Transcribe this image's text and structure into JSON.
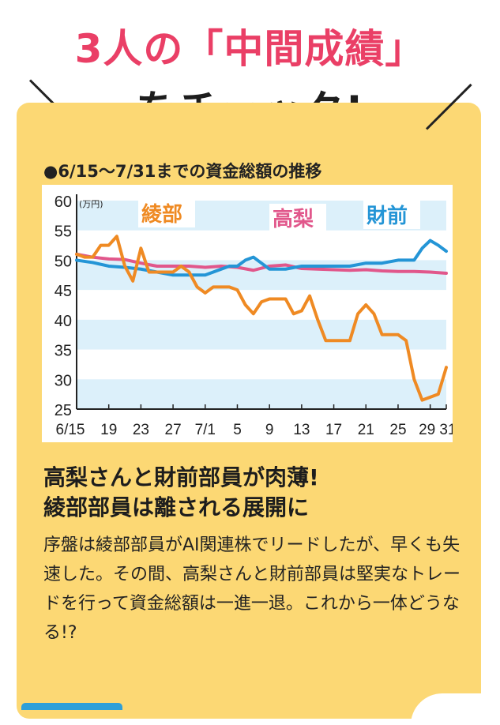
{
  "headline": {
    "line1": "3人の「中間成績」",
    "line2": "をチェック!"
  },
  "colors": {
    "accent_pink": "#ea3f66",
    "panel_yellow": "#fcd874",
    "ayabe": "#ef8a23",
    "takanashi": "#e1578b",
    "zaizen": "#2495d6",
    "band": "#dcf0fa"
  },
  "chart_data": {
    "type": "line",
    "title": "●6/15〜7/31までの資金総額の推移",
    "unit_label": "(万円)",
    "ylim": [
      25,
      60
    ],
    "y_ticks": [
      60,
      55,
      50,
      45,
      40,
      35,
      30,
      25
    ],
    "x_ticks": [
      "6/15",
      "19",
      "23",
      "27",
      "7/1",
      "5",
      "9",
      "13",
      "17",
      "21",
      "25",
      "29",
      "31"
    ],
    "x_tick_days": [
      0,
      4,
      8,
      12,
      16,
      20,
      24,
      28,
      32,
      36,
      40,
      44,
      46
    ],
    "series": [
      {
        "name": "綾部",
        "color": "#ef8a23",
        "x": [
          0,
          1,
          2,
          3,
          4,
          5,
          6,
          7,
          8,
          9,
          10,
          11,
          12,
          13,
          14,
          15,
          16,
          17,
          18,
          19,
          20,
          21,
          22,
          23,
          24,
          25,
          26,
          27,
          28,
          29,
          30,
          31,
          32,
          33,
          34,
          35,
          36,
          37,
          38,
          39,
          40,
          41,
          42,
          43,
          44,
          45,
          46
        ],
        "y": [
          51,
          50.5,
          50.5,
          52.5,
          52.5,
          54,
          49,
          46.5,
          52,
          48,
          48,
          48,
          48,
          49,
          48,
          45.5,
          44.5,
          45.5,
          45.5,
          45.5,
          45,
          42.5,
          41,
          43,
          43.5,
          43.5,
          43.5,
          41,
          41.5,
          44,
          40,
          36.5,
          36.5,
          36.5,
          36.5,
          41,
          42.5,
          41,
          37.5,
          37.5,
          37.5,
          36.5,
          30,
          26.5,
          27,
          27.5,
          32
        ]
      },
      {
        "name": "高梨",
        "color": "#e1578b",
        "x": [
          0,
          2,
          4,
          6,
          8,
          10,
          12,
          14,
          16,
          18,
          20,
          22,
          24,
          26,
          28,
          30,
          32,
          34,
          36,
          38,
          40,
          42,
          44,
          46
        ],
        "y": [
          51,
          50.5,
          50.2,
          50.1,
          49.5,
          49,
          49,
          49,
          48.8,
          49,
          48.8,
          48.3,
          49,
          49.2,
          48.6,
          48.5,
          48.4,
          48.3,
          48.4,
          48.2,
          48.1,
          48.1,
          48.0,
          47.8
        ]
      },
      {
        "name": "財前",
        "color": "#2495d6",
        "x": [
          0,
          2,
          4,
          6,
          8,
          10,
          12,
          14,
          16,
          18,
          19,
          20,
          21,
          22,
          23,
          24,
          26,
          28,
          30,
          32,
          34,
          36,
          38,
          40,
          42,
          43,
          44,
          45,
          46
        ],
        "y": [
          50,
          49.6,
          49,
          48.8,
          48.5,
          48,
          47.5,
          47.5,
          47.5,
          48.5,
          49,
          49,
          50,
          50.5,
          49.5,
          48.5,
          48.5,
          49,
          49,
          49,
          49,
          49.5,
          49.5,
          50,
          50,
          52,
          53.3,
          52.5,
          51.5
        ]
      }
    ],
    "grid_bands": true,
    "legend": "inline-labels"
  },
  "summary": {
    "title_line1": "高梨さんと財前部員が肉薄!",
    "title_line2": "綾部部員は離される展開に",
    "body": "序盤は綾部部員がAI関連株でリードしたが、早くも失速した。その間、高梨さんと財前部員は堅実なトレードを行って資金総額は一進一退。これから一体どうなる!?"
  }
}
